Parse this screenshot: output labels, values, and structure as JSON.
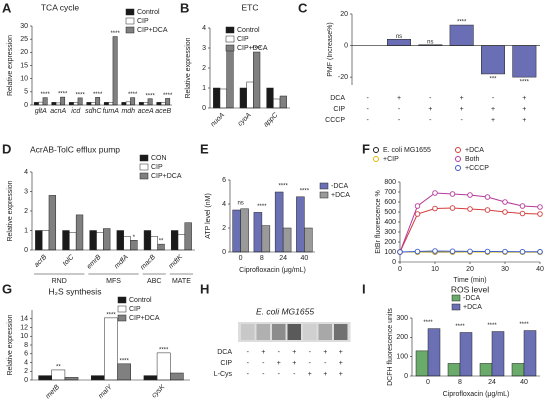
{
  "chart_data": [
    {
      "type": "bar",
      "panel": "A",
      "title": "TCA cycle",
      "y_label": "Relative expression",
      "categories": [
        "gltA",
        "acnA",
        "icd",
        "sdhC",
        "fumA",
        "mdh",
        "aceA",
        "aceB"
      ],
      "series": [
        {
          "name": "Control",
          "color": "#1a1a1a",
          "values": [
            1,
            1,
            1,
            1,
            1,
            1,
            1,
            1
          ]
        },
        {
          "name": "CIP",
          "color": "#ffffff",
          "values": [
            1.1,
            0.8,
            1,
            0.9,
            1,
            1.2,
            1,
            1
          ]
        },
        {
          "name": "CIP+DCA",
          "color": "#808080",
          "values": [
            2.8,
            3,
            2.7,
            2.9,
            26,
            2.8,
            2.4,
            2.5
          ],
          "significance": [
            "****",
            "****",
            "****",
            "****",
            "****",
            "****",
            "****",
            "****"
          ]
        }
      ],
      "ylim": [
        0,
        30
      ],
      "yticks": [
        0,
        5,
        10,
        15,
        20,
        25,
        30
      ]
    },
    {
      "type": "bar",
      "panel": "B",
      "title": "ETC",
      "y_label": "Relative expression",
      "categories": [
        "nuoA",
        "cyoA",
        "appC"
      ],
      "series": [
        {
          "name": "Control",
          "color": "#1a1a1a",
          "values": [
            1,
            1,
            1
          ]
        },
        {
          "name": "CIP",
          "color": "#ffffff",
          "values": [
            0.95,
            1.3,
            0.45
          ]
        },
        {
          "name": "CIP+DCA",
          "color": "#808080",
          "values": [
            3.1,
            2.8,
            0.6
          ],
          "significance": [
            "****",
            "****",
            null
          ]
        }
      ],
      "ylim": [
        0,
        4
      ],
      "yticks": [
        0,
        1,
        2,
        3,
        4
      ]
    },
    {
      "type": "bar",
      "panel": "C",
      "y_label": "PMF (Increase%)",
      "values": [
        0,
        4,
        0.5,
        13,
        -18,
        -20
      ],
      "significance": [
        null,
        "ns",
        "ns",
        "****",
        "***",
        "****"
      ],
      "color": "#6a6fb5",
      "ylim": [
        -25,
        20
      ],
      "yticks": [
        -20,
        0,
        20
      ],
      "conditions": [
        {
          "name": "DCA",
          "signs": [
            "-",
            "+",
            "-",
            "+",
            "-",
            "+"
          ]
        },
        {
          "name": "CIP",
          "signs": [
            "-",
            "-",
            "+",
            "+",
            "+",
            "+"
          ]
        },
        {
          "name": "CCCP",
          "signs": [
            "-",
            "-",
            "-",
            "-",
            "+",
            "+"
          ]
        }
      ]
    },
    {
      "type": "bar",
      "panel": "D",
      "title": "AcrAB-TolC efflux pump",
      "y_label": "Relative expression",
      "categories": [
        "acrB",
        "tolC",
        "emrB",
        "mdfA",
        "macB",
        "mdtK"
      ],
      "series": [
        {
          "name": "CON",
          "color": "#1a1a1a",
          "values": [
            1,
            1,
            1,
            1,
            1,
            1
          ]
        },
        {
          "name": "CIP",
          "color": "#ffffff",
          "values": [
            1,
            0.9,
            0.9,
            0.7,
            0.7,
            0.8
          ]
        },
        {
          "name": "CIP+DCA",
          "color": "#808080",
          "values": [
            2.8,
            1.8,
            1.1,
            0.5,
            0.3,
            1.4
          ],
          "significance": [
            null,
            null,
            null,
            "*",
            "**",
            null
          ]
        }
      ],
      "groups": [
        {
          "name": "RND",
          "categories": [
            "acrB",
            "tolC"
          ]
        },
        {
          "name": "MFS",
          "categories": [
            "emrB",
            "mdfA"
          ]
        },
        {
          "name": "ABC",
          "categories": [
            "macB"
          ]
        },
        {
          "name": "MATE",
          "categories": [
            "mdtK"
          ]
        }
      ],
      "ylim": [
        0,
        4
      ],
      "yticks": [
        0,
        1,
        2,
        3,
        4
      ]
    },
    {
      "type": "bar",
      "panel": "E",
      "y_label": "ATP level (nM)",
      "x_label": "Ciprofloxacin (μg/mL)",
      "categories": [
        "0",
        "8",
        "24",
        "40"
      ],
      "series": [
        {
          "name": "-DCA",
          "color": "#6b70b5",
          "values": [
            3.5,
            3.3,
            5.0,
            4.6
          ]
        },
        {
          "name": "+DCA",
          "color": "#9a9a9a",
          "values": [
            3.6,
            2.2,
            2.0,
            2.0
          ]
        }
      ],
      "significance": [
        "ns",
        "****",
        "****",
        "****"
      ],
      "ylim": [
        0,
        6
      ],
      "yticks": [
        0,
        2,
        4,
        6
      ]
    },
    {
      "type": "line",
      "panel": "F",
      "y_label": "EtBr fluorescence %",
      "x_label": "Time (min)",
      "x": [
        0,
        5,
        10,
        15,
        20,
        25,
        30,
        35,
        40
      ],
      "series": [
        {
          "name": "E. coli MG1655",
          "color": "#1a1a1a",
          "values": [
            100,
            100,
            100,
            100,
            100,
            100,
            100,
            100,
            100
          ]
        },
        {
          "name": "+DCA",
          "color": "#d43c3c",
          "values": [
            100,
            480,
            535,
            540,
            530,
            520,
            500,
            485,
            480
          ]
        },
        {
          "name": "+CIP",
          "color": "#e0b800",
          "values": [
            100,
            100,
            102,
            101,
            100,
            100,
            99,
            99,
            98
          ]
        },
        {
          "name": "Both",
          "color": "#b5389b",
          "values": [
            100,
            560,
            690,
            680,
            670,
            650,
            600,
            560,
            550
          ]
        },
        {
          "name": "+CCCP",
          "color": "#3a5bc8",
          "values": [
            100,
            105,
            110,
            108,
            106,
            105,
            104,
            103,
            102
          ]
        }
      ],
      "xlim": [
        0,
        40
      ],
      "xticks": [
        0,
        10,
        20,
        30,
        40
      ],
      "ylim": [
        0,
        800
      ],
      "yticks": [
        0,
        100,
        200,
        300,
        400,
        500,
        600,
        700,
        800
      ]
    },
    {
      "type": "bar",
      "panel": "G",
      "title": "H₂S synthesis",
      "y_label": "Relative expression",
      "categories": [
        "metB",
        "malY",
        "cysK"
      ],
      "series": [
        {
          "name": "Control",
          "color": "#1a1a1a",
          "values": [
            1,
            1,
            1
          ]
        },
        {
          "name": "CIP",
          "color": "#ffffff",
          "values": [
            2.3,
            14.2,
            6.2
          ],
          "significance": [
            "**",
            "****",
            "****"
          ]
        },
        {
          "name": "CIP+DCA",
          "color": "#808080",
          "values": [
            0.6,
            3.7,
            1.6
          ],
          "significance": [
            null,
            "****",
            null
          ]
        }
      ],
      "ylim": [
        0,
        16
      ],
      "yticks": [
        0,
        2,
        4,
        6,
        8,
        10,
        12,
        14
      ]
    },
    {
      "type": "blot",
      "panel": "H",
      "title": "E. coli MG1655",
      "conditions": [
        {
          "name": "DCA",
          "signs": [
            "-",
            "+",
            "-",
            "+",
            "-",
            "+",
            "+"
          ]
        },
        {
          "name": "CIP",
          "signs": [
            "-",
            "-",
            "+",
            "+",
            "-",
            "-",
            "+"
          ]
        },
        {
          "name": "L-Cys",
          "signs": [
            "-",
            "-",
            "-",
            "-",
            "+",
            "+",
            "+"
          ]
        }
      ]
    },
    {
      "type": "bar",
      "panel": "I",
      "title": "ROS level",
      "y_label": "DCFH fluorescence units",
      "x_label": "Ciprofloxacin (μg/mL)",
      "categories": [
        "0",
        "8",
        "24",
        "40"
      ],
      "series": [
        {
          "name": "-DCA",
          "color": "#6aaa6a",
          "values": [
            130,
            65,
            65,
            65
          ]
        },
        {
          "name": "+DCA",
          "color": "#6b70b5",
          "values": [
            245,
            225,
            230,
            235
          ]
        }
      ],
      "significance": [
        "****",
        "****",
        "****",
        "****"
      ],
      "ylim": [
        0,
        300
      ],
      "yticks": [
        0,
        100,
        200,
        300
      ]
    }
  ]
}
